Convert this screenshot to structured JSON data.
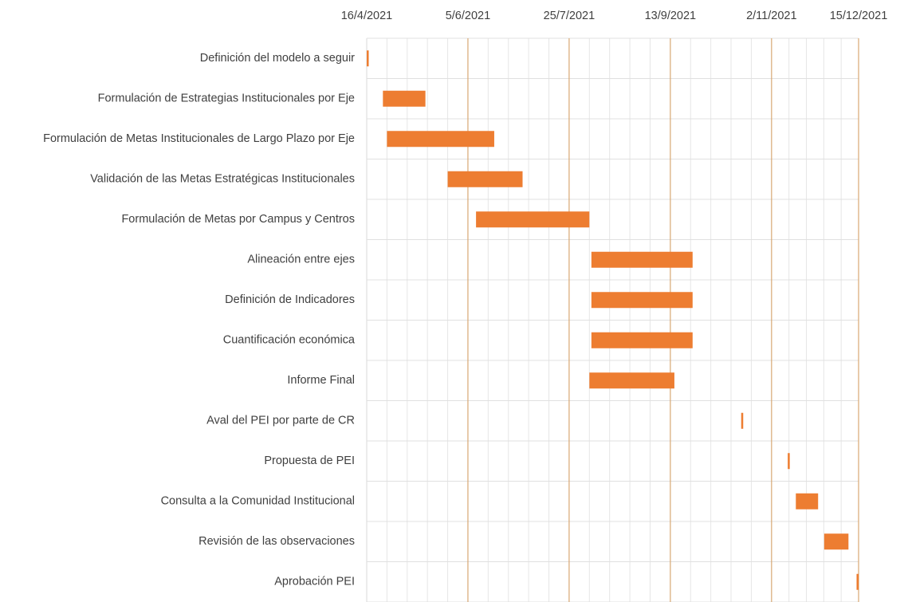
{
  "chart_data": {
    "type": "gantt",
    "categories": [
      "Definición del modelo a seguir",
      "Formulación de Estrategias Institucionales por Eje",
      "Formulación de Metas Institucionales de Largo Plazo por Eje",
      "Validación de las Metas Estratégicas Institucionales",
      "Formulación de Metas por Campus y Centros",
      "Alineación entre ejes",
      "Definición de Indicadores",
      "Cuantificación económica",
      "Informe Final",
      "Aval del PEI por parte de CR",
      "Propuesta de PEI",
      "Consulta a la Comunidad Institucional",
      "Revisión de las observaciones",
      "Aprobación PEI"
    ],
    "start": [
      "16/4/2021",
      "24/4/2021",
      "26/4/2021",
      "26/5/2021",
      "9/6/2021",
      "5/8/2021",
      "5/8/2021",
      "5/8/2021",
      "4/8/2021",
      "18/10/2021",
      "10/11/2021",
      "14/11/2021",
      "28/11/2021",
      "14/12/2021"
    ],
    "end": [
      "17/4/2021",
      "15/5/2021",
      "18/6/2021",
      "2/7/2021",
      "4/8/2021",
      "24/9/2021",
      "24/9/2021",
      "24/9/2021",
      "15/9/2021",
      "19/10/2021",
      "11/11/2021",
      "25/11/2021",
      "10/12/2021",
      "15/12/2021"
    ],
    "color": "#ed7d31",
    "xlim": [
      "16/4/2021",
      "15/12/2021"
    ],
    "xticks": [
      "16/4/2021",
      "5/6/2021",
      "25/7/2021",
      "13/9/2021",
      "2/11/2021",
      "15/12/2021"
    ],
    "grid": true,
    "minor_grid": true
  }
}
